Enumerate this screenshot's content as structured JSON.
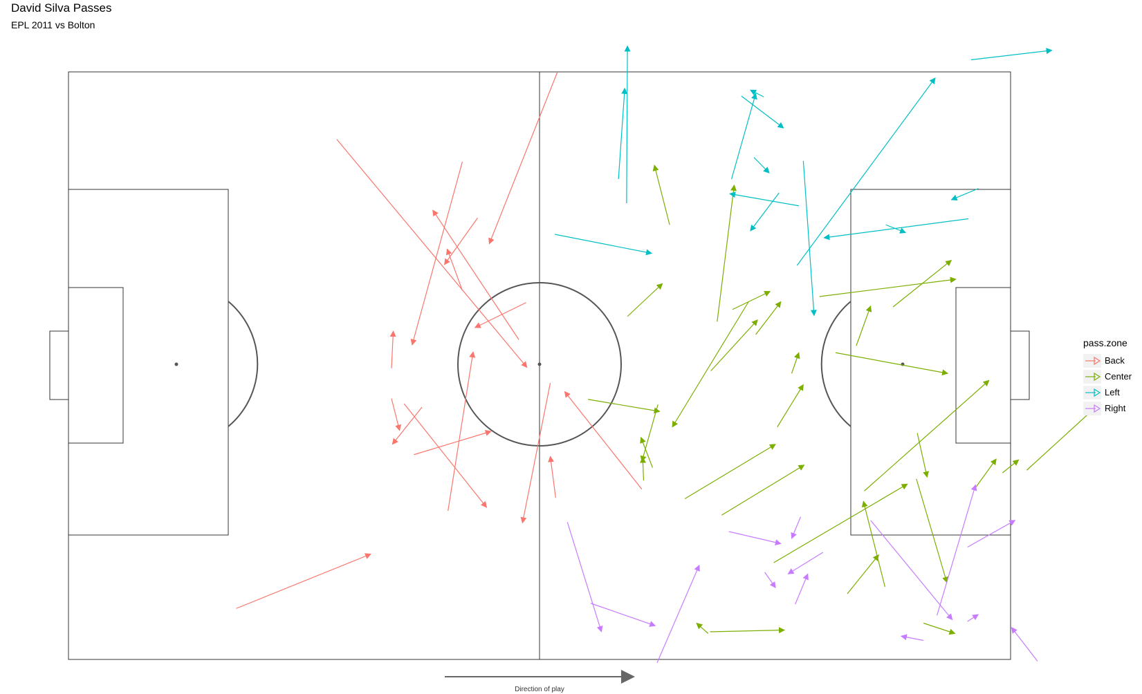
{
  "title": "David Silva Passes",
  "subtitle": "EPL 2011 vs Bolton",
  "direction_label": "Direction of play",
  "legend": {
    "title": "pass.zone",
    "items": [
      {
        "label": "Back",
        "color": "#F8766D"
      },
      {
        "label": "Center",
        "color": "#7CAE00"
      },
      {
        "label": "Left",
        "color": "#00BFC4"
      },
      {
        "label": "Right",
        "color": "#C77CFF"
      }
    ]
  },
  "chart_data": {
    "type": "scatter",
    "description_type": "pass map (arrows from start to end location)",
    "xlim": [
      0,
      105
    ],
    "ylim": [
      0,
      68
    ],
    "series": [
      {
        "name": "Back",
        "color": "#F8766D",
        "passes": [
          [
            54.5,
            68.0,
            46.9,
            48.1
          ],
          [
            36.0,
            33.7,
            36.2,
            38.0
          ],
          [
            50.2,
            37.0,
            40.6,
            52.0
          ],
          [
            29.9,
            60.2,
            51.1,
            33.8
          ],
          [
            51.0,
            41.3,
            45.3,
            38.4
          ],
          [
            38.5,
            23.7,
            47.1,
            26.4
          ],
          [
            36.0,
            30.2,
            36.9,
            26.5
          ],
          [
            37.4,
            29.6,
            46.6,
            17.6
          ],
          [
            43.9,
            57.6,
            38.3,
            36.4
          ],
          [
            43.9,
            42.7,
            42.2,
            47.5
          ],
          [
            39.4,
            29.2,
            36.1,
            24.9
          ],
          [
            54.3,
            18.7,
            53.7,
            23.5
          ],
          [
            53.7,
            32.0,
            50.6,
            15.8
          ],
          [
            63.9,
            19.7,
            55.3,
            31.0
          ],
          [
            42.3,
            17.2,
            45.1,
            35.6
          ],
          [
            45.6,
            51.1,
            41.9,
            45.7
          ],
          [
            18.7,
            5.9,
            33.7,
            12.2
          ]
        ]
      },
      {
        "name": "Center",
        "color": "#7CAE00",
        "passes": [
          [
            86.8,
            7.6,
            90.3,
            12.1
          ],
          [
            94.5,
            20.9,
            97.9,
            8.9
          ],
          [
            91.0,
            8.4,
            88.6,
            18.3
          ],
          [
            64.1,
            20.7,
            64.0,
            23.4
          ],
          [
            94.6,
            26.2,
            95.7,
            21.1
          ],
          [
            106.8,
            21.9,
            114.6,
            29.3
          ],
          [
            95.3,
            4.2,
            98.8,
            3.0
          ],
          [
            72.8,
            16.7,
            82.0,
            22.5
          ],
          [
            79.0,
            26.9,
            81.9,
            31.8
          ],
          [
            91.9,
            40.8,
            98.4,
            46.2
          ],
          [
            80.6,
            33.1,
            81.4,
            35.5
          ],
          [
            71.6,
            33.4,
            76.8,
            39.3
          ],
          [
            74.0,
            40.5,
            78.2,
            42.6
          ],
          [
            65.1,
            22.2,
            63.8,
            25.7
          ],
          [
            67.0,
            50.3,
            65.3,
            57.2
          ],
          [
            75.8,
            41.4,
            67.3,
            26.9
          ],
          [
            72.3,
            39.1,
            74.2,
            54.9
          ],
          [
            62.3,
            39.7,
            66.2,
            43.5
          ],
          [
            100.9,
            19.6,
            103.4,
            23.2
          ],
          [
            88.7,
            19.5,
            102.6,
            32.3
          ],
          [
            104.1,
            21.6,
            105.9,
            23.1
          ],
          [
            85.5,
            35.5,
            98.0,
            33.1
          ],
          [
            83.7,
            42.0,
            98.9,
            44.0
          ],
          [
            65.7,
            29.5,
            63.9,
            22.9
          ],
          [
            57.9,
            30.1,
            65.9,
            28.7
          ],
          [
            87.8,
            36.3,
            89.4,
            40.9
          ],
          [
            76.6,
            37.6,
            79.4,
            41.4
          ],
          [
            71.5,
            3.2,
            79.8,
            3.4
          ],
          [
            78.6,
            11.2,
            93.5,
            20.3
          ],
          [
            71.3,
            3.0,
            70.0,
            4.2
          ],
          [
            68.7,
            18.6,
            78.8,
            24.9
          ]
        ]
      },
      {
        "name": "Left",
        "color": "#00BFC4",
        "passes": [
          [
            81.9,
            57.7,
            83.1,
            39.8
          ],
          [
            81.4,
            52.5,
            73.7,
            53.9
          ],
          [
            100.6,
            69.4,
            109.6,
            70.5
          ],
          [
            77.5,
            65.1,
            76.0,
            65.9
          ],
          [
            73.9,
            55.6,
            76.6,
            65.5
          ],
          [
            76.4,
            58.1,
            78.1,
            56.3
          ],
          [
            75.0,
            65.2,
            79.7,
            61.5
          ],
          [
            101.4,
            54.5,
            98.4,
            53.2
          ],
          [
            91.1,
            50.3,
            93.3,
            49.4
          ],
          [
            79.2,
            54.0,
            76.0,
            49.6
          ],
          [
            100.3,
            51.0,
            84.2,
            48.8
          ],
          [
            54.2,
            49.2,
            65.0,
            47.0
          ],
          [
            81.2,
            45.6,
            96.6,
            67.3
          ],
          [
            62.2,
            52.8,
            62.3,
            71.0
          ],
          [
            61.3,
            55.6,
            62.0,
            66.1
          ]
        ]
      },
      {
        "name": "Right",
        "color": "#C77CFF",
        "passes": [
          [
            65.6,
            -0.4,
            70.3,
            10.9
          ],
          [
            81.0,
            6.4,
            82.4,
            9.9
          ],
          [
            84.1,
            12.4,
            80.2,
            9.9
          ],
          [
            100.2,
            4.4,
            101.4,
            5.2
          ],
          [
            108.0,
            -0.2,
            105.1,
            3.7
          ],
          [
            58.2,
            6.5,
            65.4,
            3.9
          ],
          [
            55.6,
            15.9,
            59.4,
            3.2
          ],
          [
            95.3,
            2.2,
            92.8,
            2.7
          ],
          [
            81.6,
            16.5,
            80.6,
            14.0
          ],
          [
            77.6,
            10.1,
            78.8,
            8.3
          ],
          [
            73.6,
            14.8,
            79.4,
            13.4
          ],
          [
            96.8,
            5.1,
            101.1,
            20.2
          ],
          [
            89.4,
            16.1,
            98.5,
            4.6
          ],
          [
            100.2,
            13.0,
            105.5,
            16.1
          ]
        ]
      }
    ]
  }
}
